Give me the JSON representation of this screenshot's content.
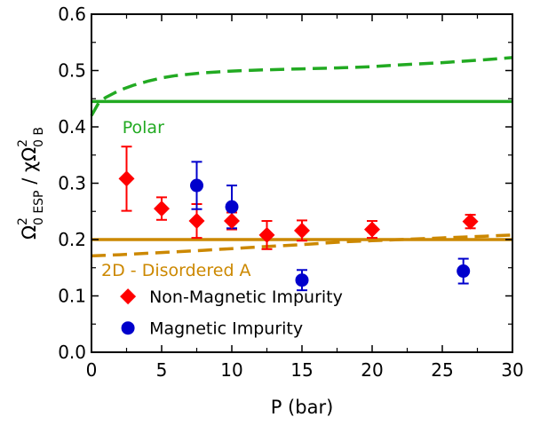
{
  "chart_data": {
    "type": "scatter",
    "xlabel": "P (bar)",
    "ylabel_main": "Ω",
    "ylabel_sup1": "2",
    "ylabel_sub1": "0 ESP",
    "ylabel_slash": " / χΩ",
    "ylabel_sup2": "2",
    "ylabel_sub2": "0 B",
    "xlim": [
      0,
      30
    ],
    "ylim": [
      0,
      0.6
    ],
    "xticks": [
      0,
      5,
      10,
      15,
      20,
      25,
      30
    ],
    "xtick_labels": [
      "0",
      "5",
      "10",
      "15",
      "20",
      "25",
      "30"
    ],
    "yticks": [
      0,
      0.1,
      0.2,
      0.3,
      0.4,
      0.5,
      0.6
    ],
    "ytick_labels": [
      "0.0",
      "0.1",
      "0.2",
      "0.3",
      "0.4",
      "0.5",
      "0.6"
    ],
    "grid": false,
    "series": [
      {
        "name": "Non-Magnetic Impurity",
        "marker": "diamond",
        "color": "#ff0000",
        "points": [
          {
            "x": 2.5,
            "y": 0.308,
            "err_low": 0.057,
            "err_high": 0.057
          },
          {
            "x": 5,
            "y": 0.255,
            "err_low": 0.02,
            "err_high": 0.02
          },
          {
            "x": 7.5,
            "y": 0.233,
            "err_low": 0.03,
            "err_high": 0.03
          },
          {
            "x": 10,
            "y": 0.233,
            "err_low": 0.015,
            "err_high": 0.015
          },
          {
            "x": 12.5,
            "y": 0.208,
            "err_low": 0.025,
            "err_high": 0.025
          },
          {
            "x": 15,
            "y": 0.216,
            "err_low": 0.018,
            "err_high": 0.018
          },
          {
            "x": 20,
            "y": 0.218,
            "err_low": 0.015,
            "err_high": 0.015
          },
          {
            "x": 27,
            "y": 0.232,
            "err_low": 0.012,
            "err_high": 0.012
          }
        ]
      },
      {
        "name": "Magnetic Impurity",
        "marker": "circle",
        "color": "#0000cc",
        "points": [
          {
            "x": 7.5,
            "y": 0.296,
            "err_low": 0.042,
            "err_high": 0.042
          },
          {
            "x": 10,
            "y": 0.258,
            "err_low": 0.038,
            "err_high": 0.038
          },
          {
            "x": 15,
            "y": 0.128,
            "err_low": 0.018,
            "err_high": 0.018
          },
          {
            "x": 26.5,
            "y": 0.144,
            "err_low": 0.022,
            "err_high": 0.022
          }
        ]
      }
    ],
    "reference_lines": [
      {
        "name": "Polar",
        "color": "#22aa22",
        "style": "solid",
        "x": [
          0,
          30
        ],
        "y": [
          0.445,
          0.445
        ]
      },
      {
        "name": "Polar dashed",
        "color": "#22aa22",
        "style": "dashed",
        "x": [
          0,
          0.5,
          1,
          2,
          3,
          4,
          5,
          6,
          8,
          10,
          12,
          15,
          18,
          20,
          22,
          25,
          28,
          30
        ],
        "y": [
          0.42,
          0.442,
          0.452,
          0.465,
          0.474,
          0.481,
          0.487,
          0.491,
          0.496,
          0.499,
          0.501,
          0.503,
          0.505,
          0.507,
          0.51,
          0.514,
          0.519,
          0.523
        ]
      },
      {
        "name": "2D - Disordered A",
        "color": "#cc8800",
        "style": "solid",
        "x": [
          0,
          30
        ],
        "y": [
          0.2,
          0.2
        ]
      },
      {
        "name": "2D - Disordered A dashed",
        "color": "#cc8800",
        "style": "dashed",
        "x": [
          0,
          2,
          5,
          8,
          10,
          12,
          15,
          18,
          20,
          22,
          25,
          28,
          30
        ],
        "y": [
          0.171,
          0.173,
          0.177,
          0.181,
          0.184,
          0.187,
          0.191,
          0.196,
          0.198,
          0.2,
          0.203,
          0.206,
          0.208
        ]
      }
    ],
    "annotations": [
      {
        "text": "Polar",
        "color": "#22aa22"
      },
      {
        "text": "2D - Disordered A",
        "color": "#cc8800"
      }
    ],
    "legend": {
      "placement": "bottom-left",
      "entries": [
        "Non-Magnetic Impurity",
        "Magnetic Impurity"
      ]
    }
  }
}
